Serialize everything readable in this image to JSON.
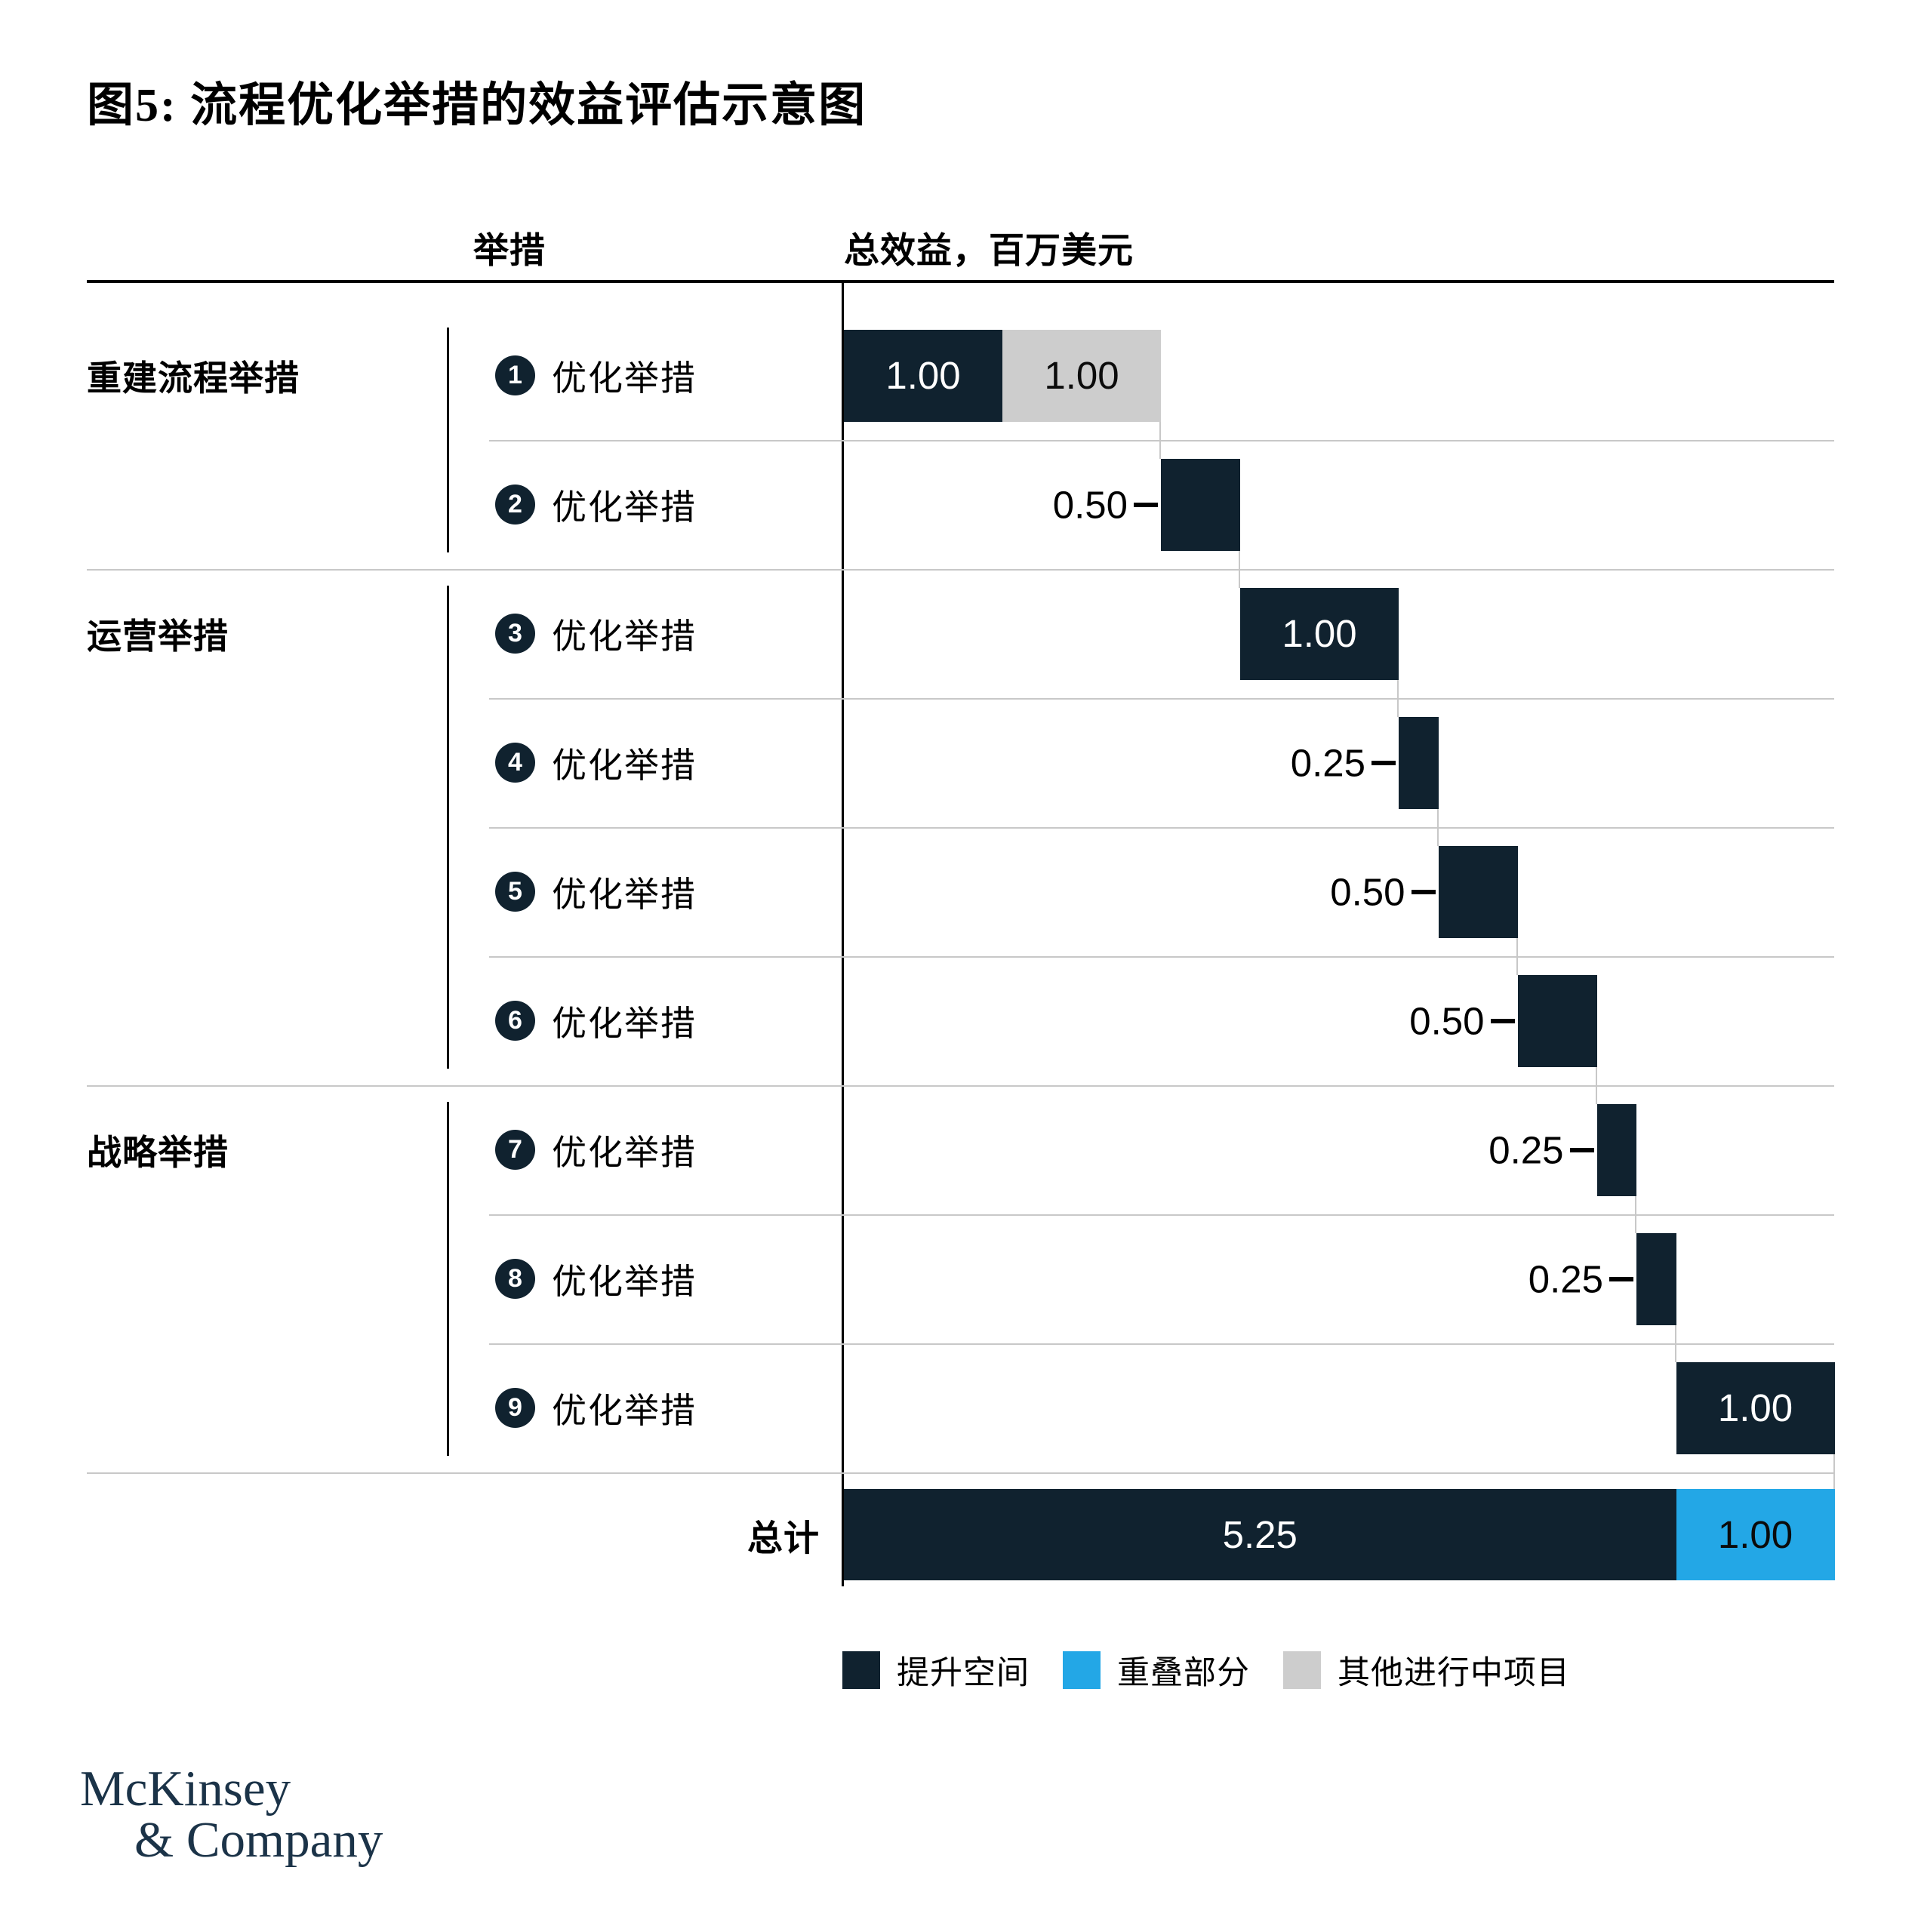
{
  "title": "图5: 流程优化举措的效益评估示意图",
  "header": {
    "initiatives_col": "举措",
    "benefit_col": "总效益，百万美元"
  },
  "chart_data": {
    "type": "waterfall-bar",
    "title": "图5: 流程优化举措的效益评估示意图",
    "value_unit": "百万美元",
    "axis": {
      "x_start": 0,
      "x_end": 6.25,
      "grid": "row-separators"
    },
    "groups": [
      {
        "label": "重建流程举措",
        "row_start": 0,
        "row_end": 1
      },
      {
        "label": "运营举措",
        "row_start": 2,
        "row_end": 5
      },
      {
        "label": "战略举措",
        "row_start": 6,
        "row_end": 8
      }
    ],
    "rows": [
      {
        "num": "1",
        "label": "优化举措",
        "value": 1.0,
        "value_label": "1.00",
        "label_inside": true,
        "extra_segment": {
          "value": 1.0,
          "value_label": "1.00",
          "legend": "其他进行中项目"
        }
      },
      {
        "num": "2",
        "label": "优化举措",
        "value": 0.5,
        "value_label": "0.50",
        "label_inside": false
      },
      {
        "num": "3",
        "label": "优化举措",
        "value": 1.0,
        "value_label": "1.00",
        "label_inside": true
      },
      {
        "num": "4",
        "label": "优化举措",
        "value": 0.25,
        "value_label": "0.25",
        "label_inside": false
      },
      {
        "num": "5",
        "label": "优化举措",
        "value": 0.5,
        "value_label": "0.50",
        "label_inside": false
      },
      {
        "num": "6",
        "label": "优化举措",
        "value": 0.5,
        "value_label": "0.50",
        "label_inside": false
      },
      {
        "num": "7",
        "label": "优化举措",
        "value": 0.25,
        "value_label": "0.25",
        "label_inside": false
      },
      {
        "num": "8",
        "label": "优化举措",
        "value": 0.25,
        "value_label": "0.25",
        "label_inside": false
      },
      {
        "num": "9",
        "label": "优化举措",
        "value": 1.0,
        "value_label": "1.00",
        "label_inside": true
      }
    ],
    "total": {
      "label": "总计",
      "segments": [
        {
          "value": 5.25,
          "value_label": "5.25",
          "legend": "提升空间"
        },
        {
          "value": 1.0,
          "value_label": "1.00",
          "legend": "重叠部分"
        }
      ]
    }
  },
  "legend": [
    {
      "label": "提升空间",
      "color": "#10222f"
    },
    {
      "label": "重叠部分",
      "color": "#23a7e6"
    },
    {
      "label": "其他进行中项目",
      "color": "#cdcdcd"
    }
  ],
  "colors": {
    "dark": "#10222f",
    "blue": "#23a7e6",
    "gray": "#cdcdcd",
    "gridline": "#c8c8c8",
    "line_black": "#000000",
    "logo_navy": "#1b3348"
  },
  "logo": {
    "line1": "McKinsey",
    "line2": "& Company"
  }
}
